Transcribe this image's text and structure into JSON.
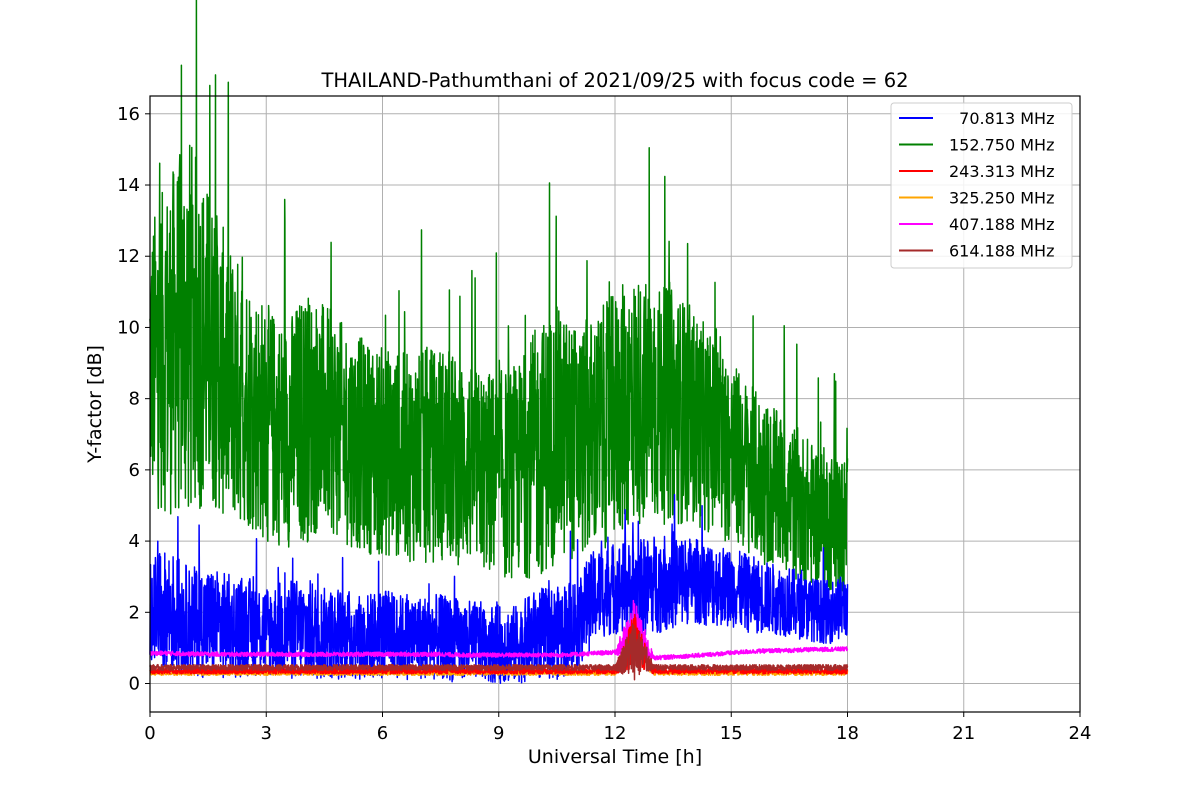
{
  "chart_data": {
    "type": "line",
    "title": "THAILAND-Pathumthani of 2021/09/25 with focus code = 62",
    "xlabel": "Universal Time [h]",
    "ylabel": "Y-factor [dB]",
    "xlim": [
      0,
      24
    ],
    "ylim": [
      -0.8,
      16.5
    ],
    "xticks": [
      0,
      3,
      6,
      9,
      12,
      15,
      18,
      21,
      24
    ],
    "yticks": [
      0,
      2,
      4,
      6,
      8,
      10,
      12,
      14,
      16
    ],
    "grid": true,
    "legend_position": "upper right",
    "data_range_x": [
      0,
      18
    ],
    "series": [
      {
        "name": "  70.813 MHz",
        "color": "#0000ff",
        "x": [
          0,
          0.5,
          1,
          1.5,
          2,
          2.5,
          3,
          3.5,
          4,
          4.5,
          5,
          5.5,
          6,
          6.5,
          7,
          7.5,
          8,
          8.5,
          9,
          9.5,
          10,
          10.5,
          11,
          11.5,
          12,
          12.5,
          13,
          13.5,
          14,
          14.5,
          15,
          15.5,
          16,
          16.5,
          17,
          17.5,
          18
        ],
        "y": [
          2.1,
          2.0,
          1.8,
          1.7,
          1.6,
          1.6,
          1.5,
          1.5,
          1.5,
          1.4,
          1.4,
          1.3,
          1.4,
          1.3,
          1.3,
          1.3,
          1.2,
          1.2,
          1.1,
          1.1,
          1.4,
          1.4,
          1.7,
          2.5,
          2.7,
          2.6,
          2.8,
          2.9,
          2.9,
          2.8,
          2.7,
          2.5,
          2.4,
          2.3,
          2.1,
          2.0,
          2.2
        ],
        "spread": [
          1.4,
          1.8,
          1.5,
          1.6,
          1.5,
          1.4,
          1.3,
          1.4,
          1.5,
          1.3,
          1.3,
          1.2,
          1.3,
          1.2,
          1.2,
          1.2,
          1.2,
          1.1,
          1.1,
          1.1,
          1.3,
          1.3,
          1.4,
          1.3,
          1.3,
          1.4,
          1.4,
          1.4,
          1.2,
          1.2,
          1.1,
          1.1,
          1.0,
          1.0,
          0.9,
          0.9,
          0.9
        ]
      },
      {
        "name": "152.750 MHz",
        "color": "#008000",
        "x": [
          0,
          0.5,
          1,
          1.5,
          2,
          2.5,
          3,
          3.5,
          4,
          4.5,
          5,
          5.5,
          6,
          6.5,
          7,
          7.5,
          8,
          8.5,
          9,
          9.5,
          10,
          10.5,
          11,
          11.5,
          12,
          12.5,
          13,
          13.5,
          14,
          14.5,
          15,
          15.5,
          16,
          16.5,
          17,
          17.5,
          18
        ],
        "y": [
          9.0,
          9.5,
          10.0,
          9.5,
          8.5,
          8.0,
          7.3,
          7.0,
          7.5,
          7.5,
          7.0,
          6.7,
          6.5,
          6.4,
          6.3,
          6.5,
          6.2,
          6.0,
          5.8,
          6.0,
          6.5,
          7.0,
          6.8,
          7.0,
          7.5,
          8.0,
          7.8,
          7.8,
          7.5,
          7.0,
          6.5,
          6.0,
          5.5,
          5.2,
          4.8,
          4.6,
          4.4
        ],
        "spread": [
          4.0,
          4.8,
          5.5,
          4.5,
          4.0,
          3.6,
          3.4,
          3.2,
          3.6,
          3.2,
          3.1,
          3.0,
          3.0,
          2.9,
          3.0,
          3.1,
          2.9,
          2.8,
          3.0,
          3.0,
          3.6,
          3.6,
          3.3,
          3.4,
          3.5,
          3.6,
          3.4,
          3.3,
          3.1,
          2.8,
          2.6,
          2.4,
          2.3,
          2.2,
          2.1,
          2.0,
          2.0
        ]
      },
      {
        "name": "243.313 MHz",
        "color": "#ff0000",
        "x": [
          0,
          0.5,
          1,
          1.5,
          2,
          2.5,
          3,
          3.5,
          4,
          4.5,
          5,
          5.5,
          6,
          6.5,
          7,
          7.5,
          8,
          8.5,
          9,
          9.5,
          10,
          10.5,
          11,
          11.5,
          12,
          12.5,
          13,
          13.5,
          14,
          14.5,
          15,
          15.5,
          16,
          16.5,
          17,
          17.5,
          18
        ],
        "y": [
          0.35,
          0.35,
          0.35,
          0.35,
          0.35,
          0.35,
          0.35,
          0.35,
          0.35,
          0.35,
          0.35,
          0.35,
          0.35,
          0.35,
          0.35,
          0.35,
          0.35,
          0.35,
          0.35,
          0.35,
          0.35,
          0.35,
          0.35,
          0.35,
          0.35,
          1.2,
          0.35,
          0.35,
          0.35,
          0.35,
          0.35,
          0.35,
          0.35,
          0.35,
          0.35,
          0.35,
          0.35
        ],
        "spread": [
          0.08,
          0.08,
          0.08,
          0.08,
          0.08,
          0.08,
          0.08,
          0.08,
          0.08,
          0.08,
          0.08,
          0.08,
          0.08,
          0.08,
          0.08,
          0.08,
          0.08,
          0.08,
          0.08,
          0.08,
          0.08,
          0.08,
          0.08,
          0.08,
          0.08,
          0.8,
          0.08,
          0.08,
          0.08,
          0.08,
          0.08,
          0.08,
          0.08,
          0.08,
          0.08,
          0.08,
          0.08
        ]
      },
      {
        "name": "325.250 MHz",
        "color": "#ffa500",
        "x": [
          0,
          0.5,
          1,
          1.5,
          2,
          2.5,
          3,
          3.5,
          4,
          4.5,
          5,
          5.5,
          6,
          6.5,
          7,
          7.5,
          8,
          8.5,
          9,
          9.5,
          10,
          10.5,
          11,
          11.5,
          12,
          12.5,
          13,
          13.5,
          14,
          14.5,
          15,
          15.5,
          16,
          16.5,
          17,
          17.5,
          18
        ],
        "y": [
          0.3,
          0.3,
          0.3,
          0.3,
          0.3,
          0.3,
          0.3,
          0.3,
          0.3,
          0.3,
          0.3,
          0.3,
          0.3,
          0.3,
          0.3,
          0.3,
          0.3,
          0.3,
          0.3,
          0.3,
          0.3,
          0.3,
          0.3,
          0.3,
          0.3,
          1.3,
          0.3,
          0.3,
          0.3,
          0.3,
          0.3,
          0.3,
          0.3,
          0.3,
          0.3,
          0.3,
          0.3
        ],
        "spread": [
          0.07,
          0.07,
          0.07,
          0.07,
          0.07,
          0.07,
          0.07,
          0.07,
          0.07,
          0.07,
          0.07,
          0.07,
          0.07,
          0.07,
          0.07,
          0.07,
          0.07,
          0.07,
          0.07,
          0.07,
          0.07,
          0.07,
          0.07,
          0.07,
          0.07,
          0.6,
          0.07,
          0.07,
          0.07,
          0.07,
          0.07,
          0.07,
          0.07,
          0.07,
          0.07,
          0.07,
          0.07
        ]
      },
      {
        "name": "407.188 MHz",
        "color": "#ff00ff",
        "x": [
          0,
          0.5,
          1,
          1.5,
          2,
          2.5,
          3,
          3.5,
          4,
          4.5,
          5,
          5.5,
          6,
          6.5,
          7,
          7.5,
          8,
          8.5,
          9,
          9.5,
          10,
          10.5,
          11,
          11.5,
          12,
          12.5,
          13,
          13.5,
          14,
          14.5,
          15,
          15.5,
          16,
          16.5,
          17,
          17.5,
          18
        ],
        "y": [
          0.85,
          0.85,
          0.83,
          0.83,
          0.82,
          0.82,
          0.82,
          0.82,
          0.82,
          0.82,
          0.82,
          0.82,
          0.82,
          0.82,
          0.82,
          0.82,
          0.8,
          0.8,
          0.8,
          0.8,
          0.8,
          0.8,
          0.82,
          0.85,
          0.88,
          1.5,
          0.72,
          0.75,
          0.78,
          0.82,
          0.86,
          0.9,
          0.92,
          0.93,
          0.95,
          0.96,
          0.97
        ],
        "spread": [
          0.06,
          0.06,
          0.06,
          0.06,
          0.06,
          0.06,
          0.06,
          0.06,
          0.06,
          0.06,
          0.06,
          0.06,
          0.06,
          0.06,
          0.06,
          0.06,
          0.06,
          0.06,
          0.06,
          0.06,
          0.06,
          0.06,
          0.06,
          0.06,
          0.06,
          0.9,
          0.06,
          0.06,
          0.06,
          0.06,
          0.06,
          0.06,
          0.06,
          0.06,
          0.06,
          0.06,
          0.06
        ]
      },
      {
        "name": "614.188 MHz",
        "color": "#a52a2a",
        "x": [
          0,
          0.5,
          1,
          1.5,
          2,
          2.5,
          3,
          3.5,
          4,
          4.5,
          5,
          5.5,
          6,
          6.5,
          7,
          7.5,
          8,
          8.5,
          9,
          9.5,
          10,
          10.5,
          11,
          11.5,
          12,
          12.5,
          13,
          13.5,
          14,
          14.5,
          15,
          15.5,
          16,
          16.5,
          17,
          17.5,
          18
        ],
        "y": [
          0.45,
          0.45,
          0.45,
          0.45,
          0.45,
          0.45,
          0.45,
          0.45,
          0.45,
          0.45,
          0.45,
          0.45,
          0.45,
          0.45,
          0.45,
          0.45,
          0.45,
          0.45,
          0.45,
          0.45,
          0.45,
          0.45,
          0.45,
          0.45,
          0.45,
          1.0,
          0.45,
          0.45,
          0.45,
          0.45,
          0.45,
          0.45,
          0.45,
          0.45,
          0.45,
          0.45,
          0.45
        ],
        "spread": [
          0.08,
          0.08,
          0.08,
          0.08,
          0.08,
          0.08,
          0.08,
          0.08,
          0.08,
          0.08,
          0.08,
          0.08,
          0.08,
          0.08,
          0.08,
          0.08,
          0.08,
          0.08,
          0.08,
          0.08,
          0.08,
          0.08,
          0.08,
          0.08,
          0.08,
          0.9,
          0.08,
          0.08,
          0.08,
          0.08,
          0.08,
          0.08,
          0.08,
          0.08,
          0.08,
          0.08,
          0.08
        ]
      }
    ]
  }
}
